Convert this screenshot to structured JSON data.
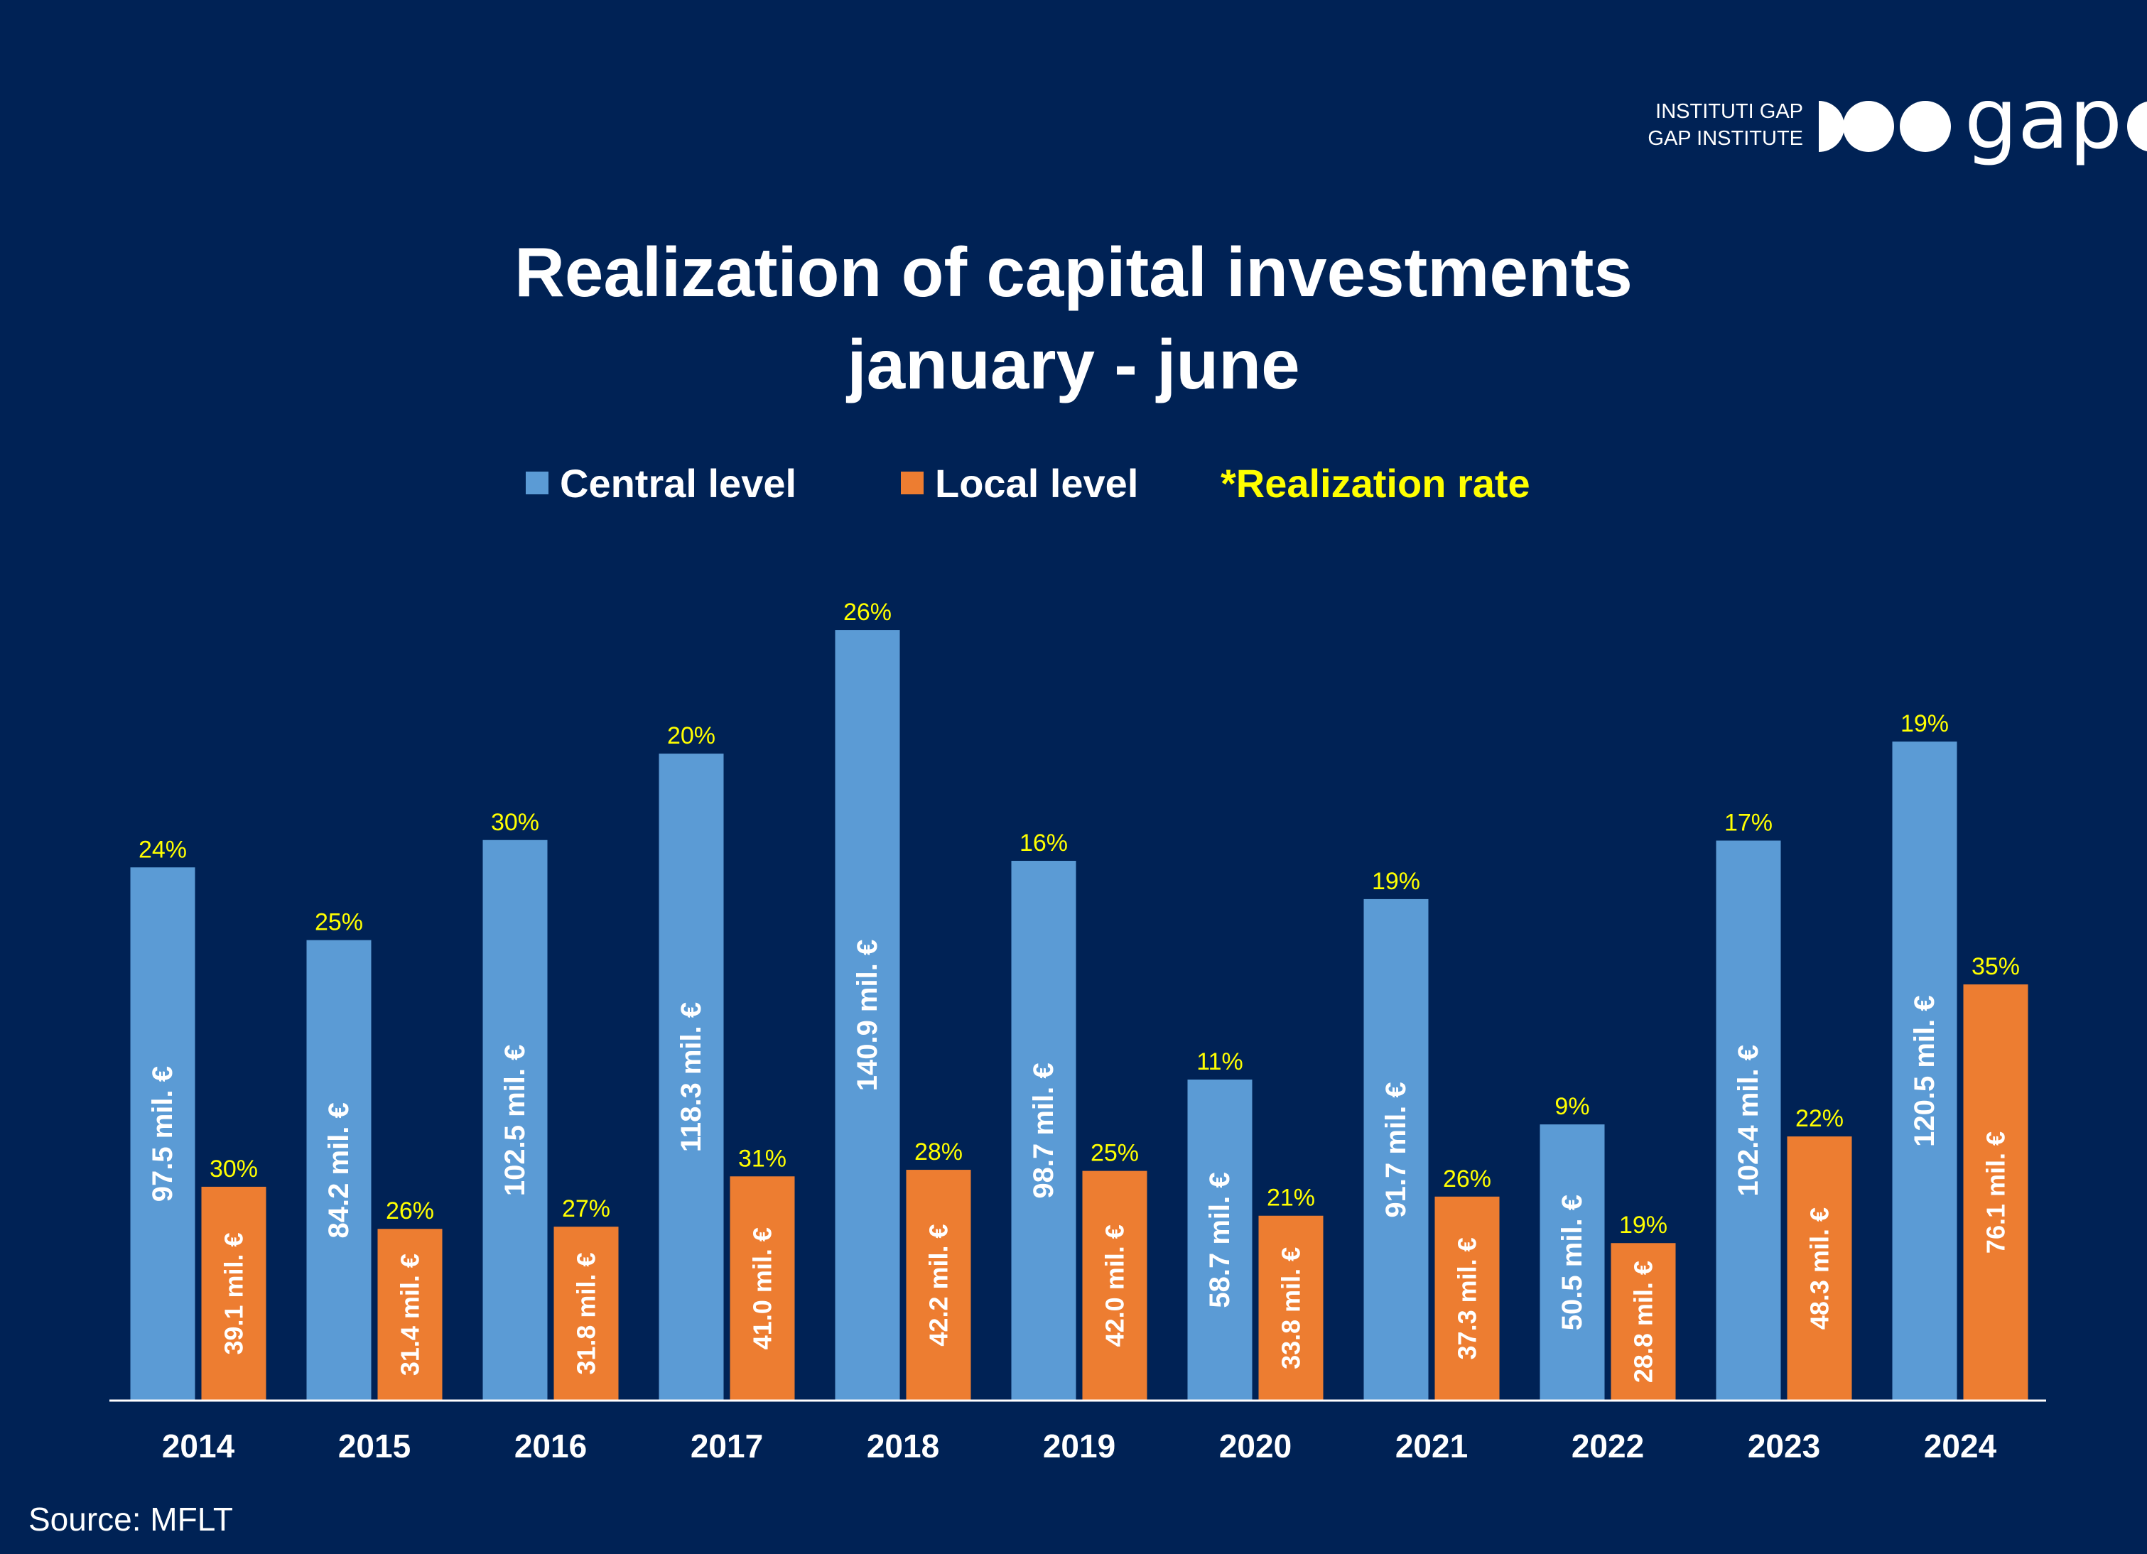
{
  "logo": {
    "line1": "INSTITUTI GAP",
    "line2": "GAP INSTITUTE",
    "wordmark": "gap"
  },
  "colors": {
    "background": "#002255",
    "central": "#5b9bd5",
    "local": "#ed7d31",
    "rate": "#ffff00",
    "text": "#ffffff"
  },
  "source": "Source: MFLT",
  "chart_data": {
    "type": "bar",
    "title": "Realization of capital investments",
    "subtitle": "january - june",
    "categories": [
      "2014",
      "2015",
      "2016",
      "2017",
      "2018",
      "2019",
      "2020",
      "2021",
      "2022",
      "2023",
      "2024"
    ],
    "series": [
      {
        "name": "Central level",
        "color": "#5b9bd5",
        "values": [
          97.5,
          84.2,
          102.5,
          118.3,
          140.9,
          98.7,
          58.7,
          91.7,
          50.5,
          102.4,
          120.5
        ],
        "labels": [
          "97.5 mil. €",
          "84.2 mil. €",
          "102.5 mil. €",
          "118.3 mil. €",
          "140.9 mil. €",
          "98.7 mil. €",
          "58.7 mil. €",
          "91.7 mil. €",
          "50.5 mil. €",
          "102.4 mil. €",
          "120.5 mil. €"
        ],
        "realization_rate": [
          "24%",
          "25%",
          "30%",
          "20%",
          "26%",
          "16%",
          "11%",
          "19%",
          "9%",
          "17%",
          "19%"
        ]
      },
      {
        "name": "Local level",
        "color": "#ed7d31",
        "values": [
          39.1,
          31.4,
          31.8,
          41.0,
          42.2,
          42.0,
          33.8,
          37.3,
          28.8,
          48.3,
          76.1
        ],
        "labels": [
          "39.1 mil. €",
          "31.4 mil. €",
          "31.8 mil. €",
          "41.0 mil. €",
          "42.2 mil. €",
          "42.0 mil. €",
          "33.8 mil. €",
          "37.3 mil. €",
          "28.8 mil. €",
          "48.3 mil. €",
          "76.1 mil. €"
        ],
        "realization_rate": [
          "30%",
          "26%",
          "27%",
          "31%",
          "28%",
          "25%",
          "21%",
          "26%",
          "19%",
          "22%",
          "35%"
        ]
      }
    ],
    "legend": {
      "central": "Central level",
      "local": "Local level",
      "rate": "*Realization rate"
    },
    "legend_position": "top-center",
    "grid": false,
    "ylim": [
      0,
      150
    ],
    "units": "mil. €"
  }
}
